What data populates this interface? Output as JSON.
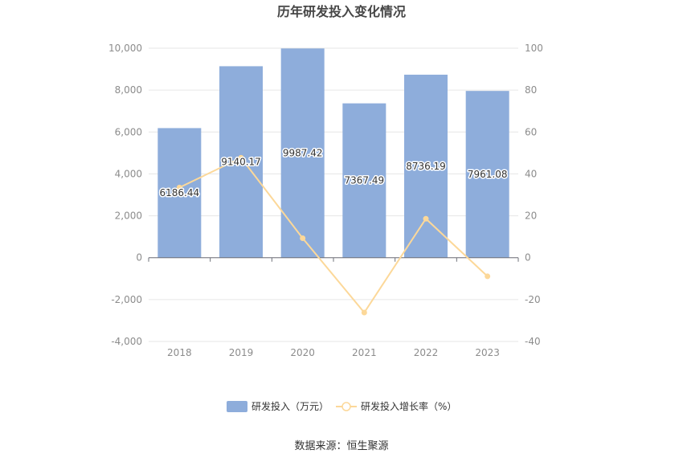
{
  "chart_data": {
    "type": "bar",
    "title": "历年研发投入变化情况",
    "categories": [
      "2018",
      "2019",
      "2020",
      "2021",
      "2022",
      "2023"
    ],
    "series": [
      {
        "name": "研发投入（万元）",
        "type": "bar",
        "axis": "left",
        "color": "#8eaddb",
        "values": [
          6186.44,
          9140.17,
          9987.42,
          7367.49,
          8736.19,
          7961.08
        ],
        "labels": [
          "6186.44",
          "9140.17",
          "9987.42",
          "7367.49",
          "8736.19",
          "7961.08"
        ]
      },
      {
        "name": "研发投入增长率（%）",
        "type": "line",
        "axis": "right",
        "color": "#fcd899",
        "values": [
          33.5,
          47.7,
          9.3,
          -26.2,
          18.6,
          -8.9
        ]
      }
    ],
    "left_axis": {
      "min": -4000,
      "max": 10000,
      "ticks": [
        "-4,000",
        "-2,000",
        "0",
        "2,000",
        "4,000",
        "6,000",
        "8,000",
        "10,000"
      ]
    },
    "right_axis": {
      "min": -40,
      "max": 100,
      "ticks": [
        "-40",
        "-20",
        "0",
        "20",
        "40",
        "60",
        "80",
        "100"
      ]
    },
    "grid": true,
    "legend_position": "bottom"
  },
  "source_text": "数据来源：恒生聚源"
}
